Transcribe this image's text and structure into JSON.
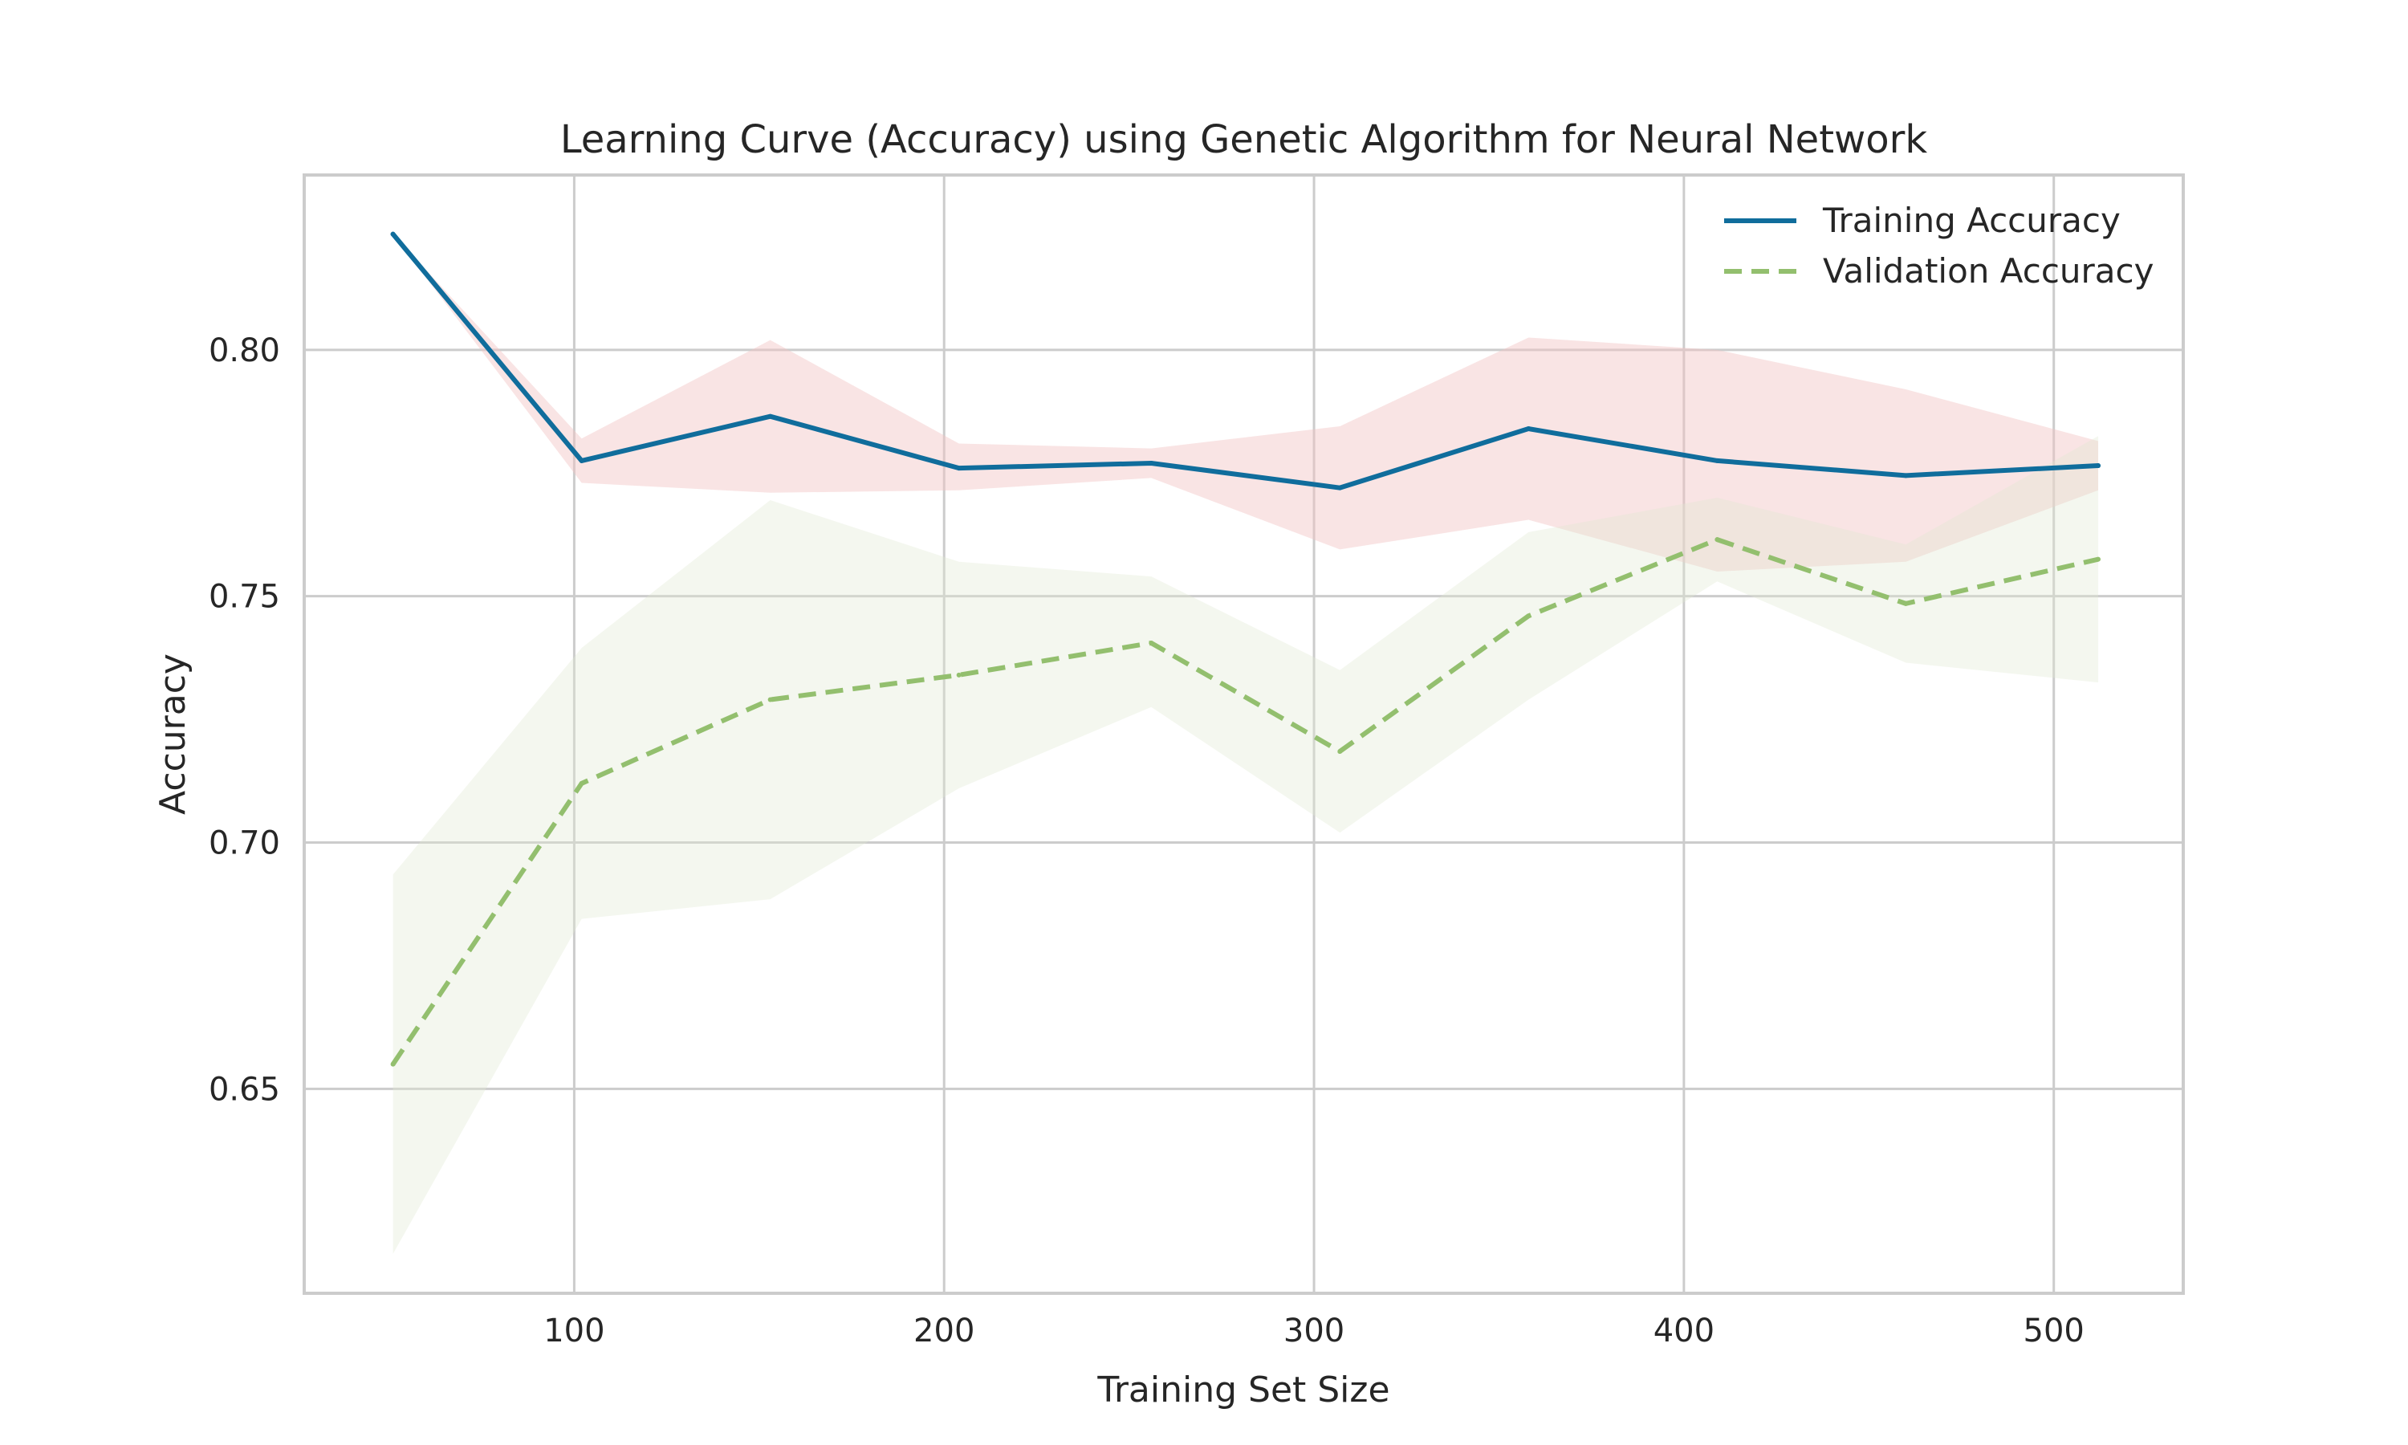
{
  "chart_data": {
    "type": "line",
    "title": "Learning Curve (Accuracy) using Genetic Algorithm for Neural Network",
    "xlabel": "Training Set Size",
    "ylabel": "Accuracy",
    "xlim": [
      27,
      535
    ],
    "ylim": [
      0.6085,
      0.8355
    ],
    "xticks": [
      100,
      200,
      300,
      400,
      500
    ],
    "yticks": [
      0.65,
      0.7,
      0.75,
      0.8
    ],
    "xtick_labels": [
      "100",
      "200",
      "300",
      "400",
      "500"
    ],
    "ytick_labels": [
      "0.65",
      "0.70",
      "0.75",
      "0.80"
    ],
    "grid": true,
    "legend_position": "top-right",
    "x": [
      51,
      102,
      153,
      204,
      256,
      307,
      358,
      409,
      460,
      512
    ],
    "series": [
      {
        "name": "Training Accuracy",
        "style": "solid",
        "color": "#106d9c",
        "band_color": "#f2c4c4",
        "values": [
          0.8235,
          0.7775,
          0.7865,
          0.776,
          0.777,
          0.772,
          0.784,
          0.7775,
          0.7745,
          0.7765
        ],
        "lower": [
          0.8235,
          0.773,
          0.771,
          0.7715,
          0.774,
          0.7595,
          0.7655,
          0.755,
          0.757,
          0.7715
        ],
        "upper": [
          0.8235,
          0.782,
          0.802,
          0.781,
          0.78,
          0.7845,
          0.8025,
          0.8,
          0.792,
          0.7815
        ]
      },
      {
        "name": "Validation Accuracy",
        "style": "dashed",
        "color": "#93bf6e",
        "band_color": "#dfe9d2",
        "values": [
          0.655,
          0.712,
          0.729,
          0.734,
          0.7405,
          0.7185,
          0.746,
          0.7615,
          0.7485,
          0.7575
        ],
        "lower": [
          0.6165,
          0.6845,
          0.6885,
          0.711,
          0.7275,
          0.702,
          0.729,
          0.753,
          0.7365,
          0.7325
        ],
        "upper": [
          0.6935,
          0.7395,
          0.7695,
          0.757,
          0.754,
          0.735,
          0.763,
          0.77,
          0.7605,
          0.7825
        ]
      }
    ]
  }
}
